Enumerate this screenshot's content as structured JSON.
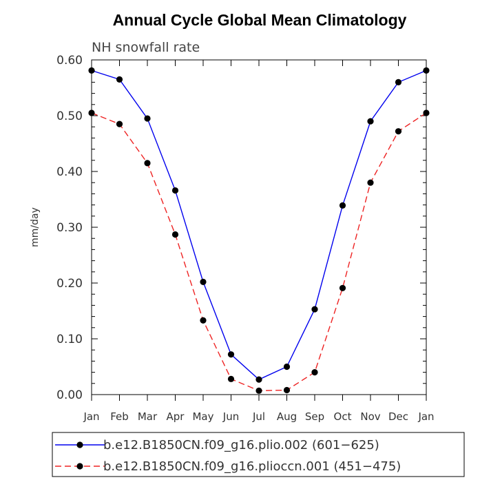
{
  "chart_data": {
    "type": "line",
    "title": "Annual Cycle Global Mean Climatology",
    "subtitle": "NH snowfall rate",
    "xlabel": "",
    "ylabel": "mm/day",
    "categories": [
      "Jan",
      "Feb",
      "Mar",
      "Apr",
      "May",
      "Jun",
      "Jul",
      "Aug",
      "Sep",
      "Oct",
      "Nov",
      "Dec",
      "Jan"
    ],
    "ylim": [
      0,
      0.6
    ],
    "yticks": [
      "0.00",
      "0.10",
      "0.20",
      "0.30",
      "0.40",
      "0.50",
      "0.60"
    ],
    "grid": false,
    "legend": "bottom",
    "series": [
      {
        "name": "b.e12.B1850CN.f09_g16.plio.002 (601−625)",
        "color": "#0000ee",
        "style": "solid",
        "values": [
          0.581,
          0.565,
          0.495,
          0.366,
          0.202,
          0.072,
          0.027,
          0.05,
          0.153,
          0.339,
          0.49,
          0.56,
          0.581
        ]
      },
      {
        "name": "b.e12.B1850CN.f09_g16.plioccn.001 (451−475)",
        "color": "#ee2222",
        "style": "dashed",
        "values": [
          0.505,
          0.485,
          0.415,
          0.287,
          0.133,
          0.028,
          0.007,
          0.008,
          0.04,
          0.191,
          0.38,
          0.472,
          0.505
        ]
      }
    ]
  }
}
